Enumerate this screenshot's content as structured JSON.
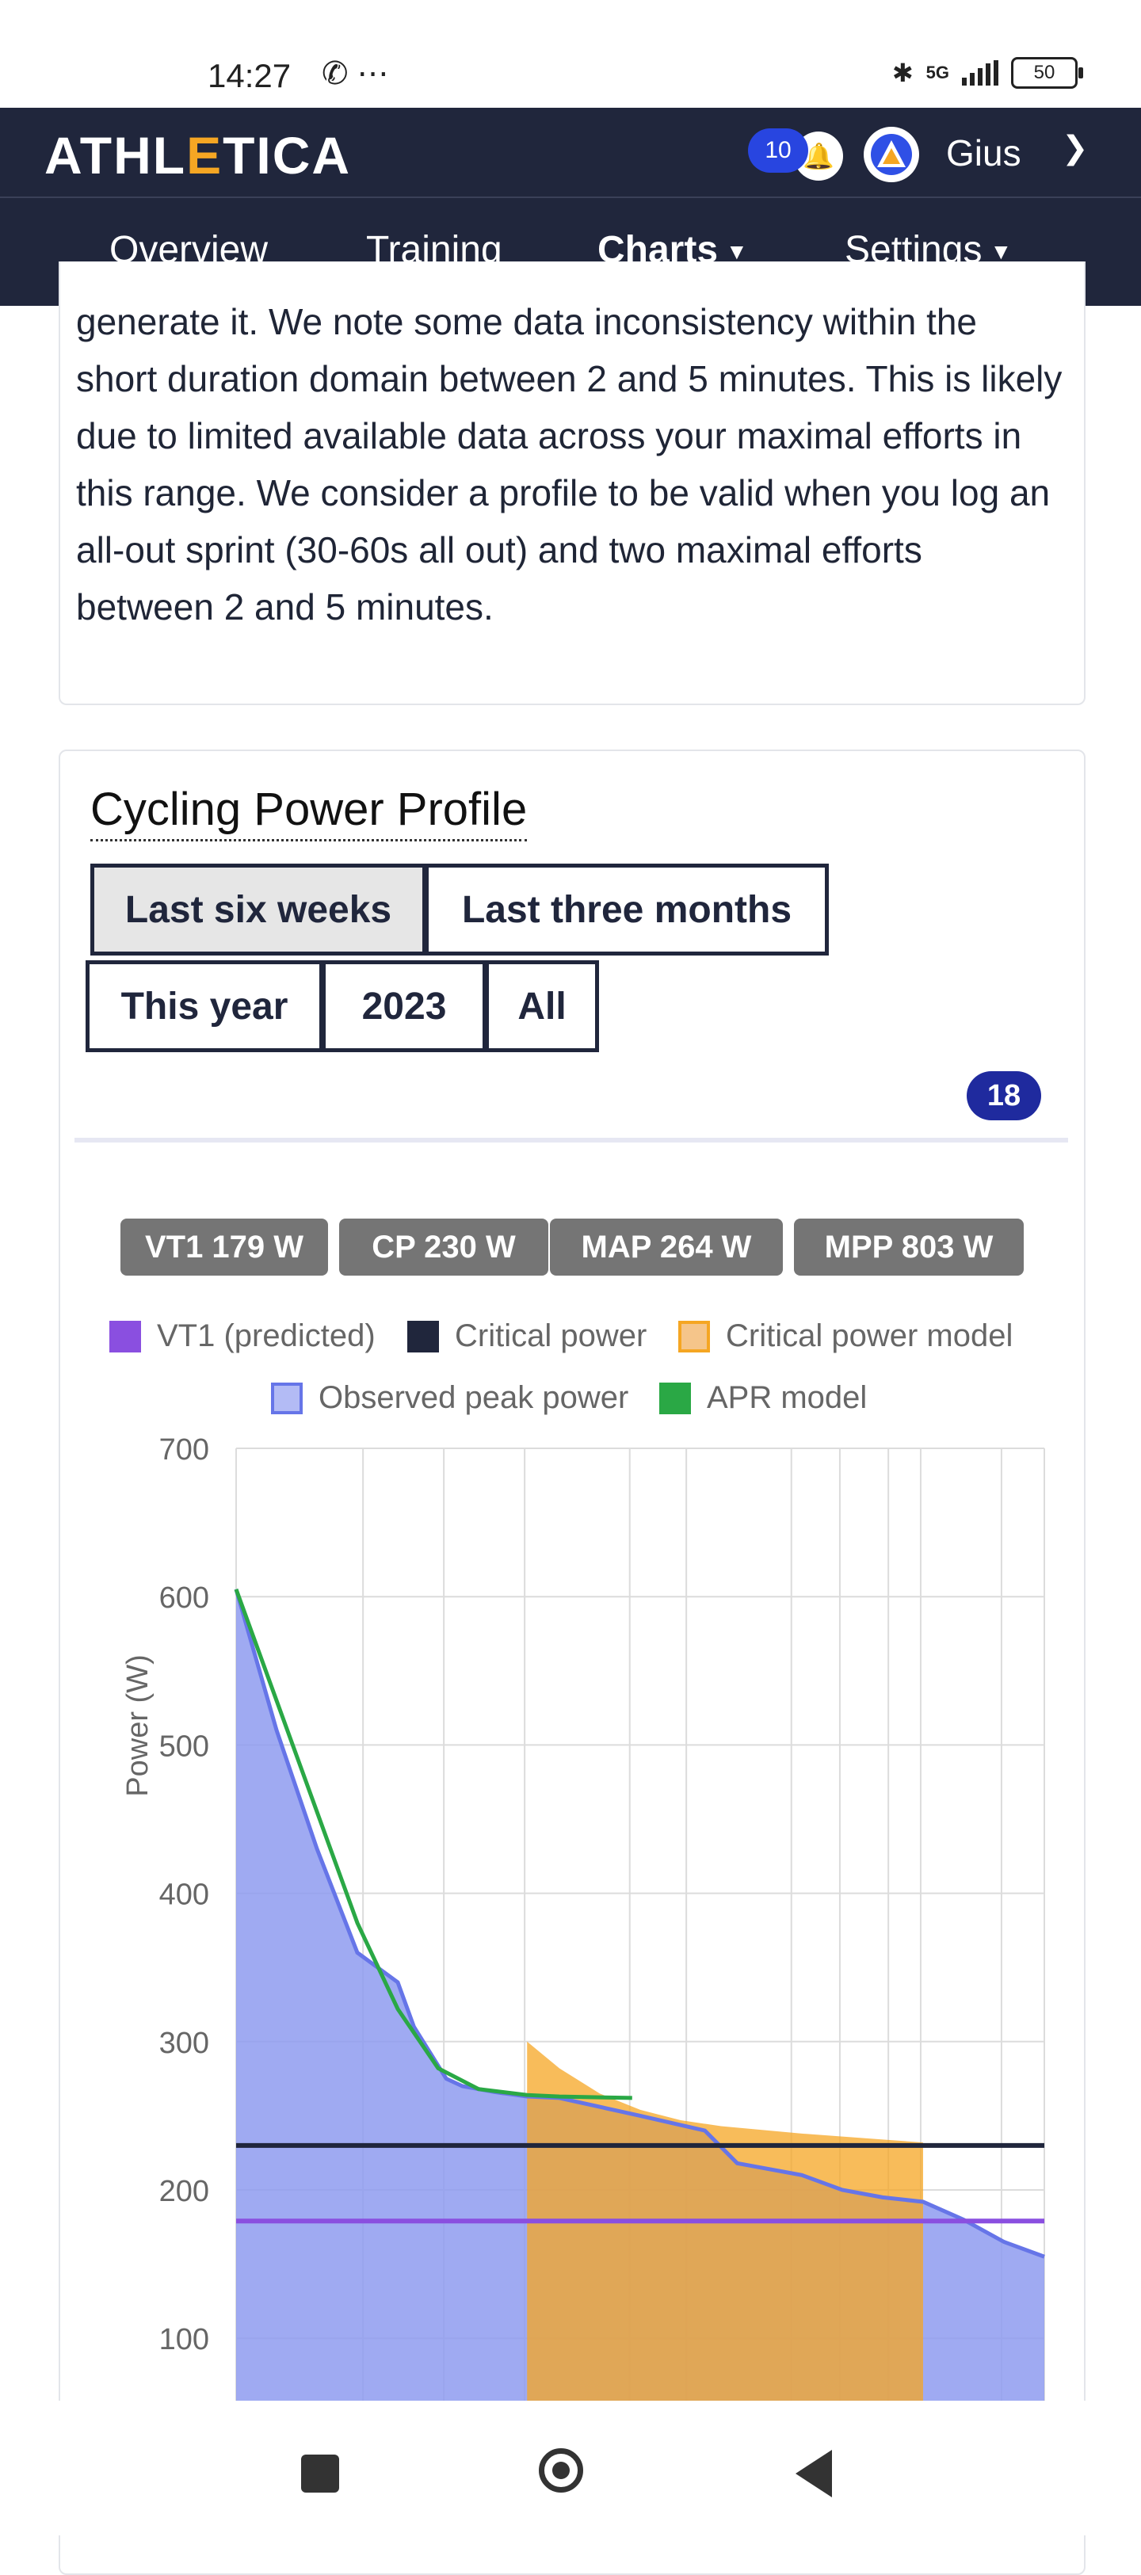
{
  "status_bar": {
    "time": "14:27",
    "network": "5G",
    "battery": "50"
  },
  "header": {
    "logo_pre": "ATHL",
    "logo_accent": "E",
    "logo_post": "TICA",
    "notification_count": "10",
    "user_name": "Gius"
  },
  "nav": {
    "tabs": [
      {
        "label": "Overview"
      },
      {
        "label": "Training"
      },
      {
        "label": "Charts"
      },
      {
        "label": "Settings"
      }
    ],
    "active": "Charts"
  },
  "info_card": {
    "text": "generate it. We note some data inconsistency within the short duration domain between 2 and 5 minutes. This is likely due to limited available data across your maximal efforts in this range. We consider a profile to be valid when you log an all-out sprint (30-60s all out) and two maximal efforts between 2 and 5 minutes."
  },
  "power_card": {
    "title": "Cycling Power Profile",
    "ranges": [
      "Last six weeks",
      "Last three months",
      "This year",
      "2023",
      "All"
    ],
    "selected_range": "Last six weeks",
    "count_badge": "18",
    "metrics": [
      "VT1 179 W",
      "CP 230 W",
      "MAP 264 W",
      "MPP 803 W"
    ]
  },
  "colors": {
    "vt1": "#8a4fe0",
    "cp": "#20263c",
    "cp_model": "#f5a623",
    "observed": "#8e9bf0",
    "apr": "#2aa845"
  },
  "chart_data": {
    "type": "area",
    "ylabel": "Power (W)",
    "yticks": [
      100,
      200,
      300,
      400,
      500,
      600,
      700
    ],
    "ylim": [
      55,
      700
    ],
    "legend": [
      "VT1 (predicted)",
      "Critical power",
      "Critical power model",
      "Observed peak power",
      "APR model"
    ],
    "series": [
      {
        "name": "Observed peak power",
        "x": [
          0,
          0.05,
          0.1,
          0.15,
          0.2,
          0.22,
          0.26,
          0.28,
          0.32,
          0.36,
          0.4,
          0.5,
          0.58,
          0.62,
          0.7,
          0.75,
          0.8,
          0.85,
          0.9,
          0.95,
          1.0
        ],
        "values": [
          605,
          510,
          430,
          360,
          340,
          310,
          275,
          270,
          266,
          263,
          262,
          250,
          240,
          218,
          210,
          200,
          195,
          192,
          180,
          165,
          155
        ]
      },
      {
        "name": "APR model",
        "x": [
          0,
          0.05,
          0.1,
          0.15,
          0.2,
          0.25,
          0.3,
          0.36,
          0.4,
          0.49
        ],
        "values": [
          605,
          530,
          455,
          380,
          322,
          282,
          268,
          264,
          263,
          262
        ]
      },
      {
        "name": "Critical power model",
        "x": [
          0.36,
          0.4,
          0.45,
          0.5,
          0.55,
          0.6,
          0.7,
          0.8,
          0.85
        ],
        "values": [
          300,
          282,
          265,
          254,
          247,
          243,
          238,
          234,
          232
        ]
      },
      {
        "name": "Critical power",
        "values": [
          230
        ]
      },
      {
        "name": "VT1 (predicted)",
        "values": [
          179
        ]
      }
    ]
  }
}
